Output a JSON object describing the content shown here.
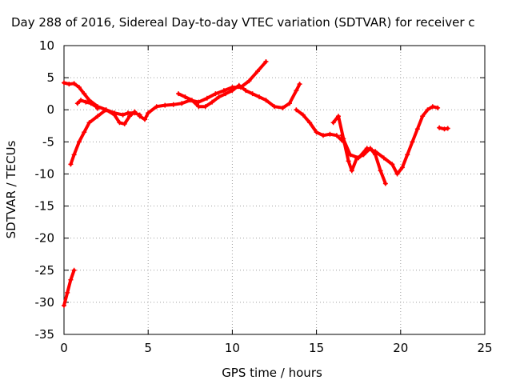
{
  "chart_data": {
    "type": "scatter",
    "title": "Day 288 of 2016, Sidereal Day-to-day VTEC variation (SDTVAR) for receiver c",
    "xlabel": "GPS time / hours",
    "ylabel": "SDTVAR / TECUs",
    "xlim": [
      0,
      25
    ],
    "ylim": [
      -35,
      10
    ],
    "xticks": [
      "0",
      "5",
      "10",
      "15",
      "20",
      "25"
    ],
    "yticks": [
      "10",
      "5",
      "0",
      "-5",
      "-10",
      "-15",
      "-20",
      "-25",
      "-30",
      "-35"
    ],
    "grid": true,
    "color": "#ff0000",
    "series": [
      {
        "x": [
          0.0,
          0.2,
          0.4,
          0.6
        ],
        "y": [
          -30.5,
          -28.5,
          -26.5,
          -25.0
        ]
      },
      {
        "x": [
          0.4,
          0.6,
          0.9,
          1.2,
          1.5,
          2.0,
          2.5,
          3.0,
          3.5,
          3.8,
          4.2,
          4.5
        ],
        "y": [
          -8.5,
          -7.0,
          -5.0,
          -3.5,
          -2.0,
          -1.0,
          0.0,
          -0.5,
          -0.8,
          -0.5,
          -0.5,
          -0.8
        ]
      },
      {
        "x": [
          0.0,
          0.3,
          0.6,
          0.9,
          1.2,
          1.5,
          2.0,
          2.5,
          3.0,
          3.3,
          3.6,
          3.9,
          4.2
        ],
        "y": [
          4.2,
          4.0,
          4.1,
          3.5,
          2.5,
          1.5,
          0.5,
          0.0,
          -0.8,
          -2.0,
          -2.2,
          -1.0,
          -0.3
        ]
      },
      {
        "x": [
          0.8,
          1.0,
          1.3,
          1.6,
          1.9,
          2.0
        ],
        "y": [
          1.0,
          1.5,
          1.2,
          1.0,
          0.5,
          0.2
        ]
      },
      {
        "x": [
          4.5,
          4.8,
          5.0,
          5.5,
          6.0,
          6.5,
          7.0,
          7.5,
          8.0,
          8.5,
          9.0,
          9.5,
          10.0,
          10.5,
          11.0,
          11.5,
          12.0
        ],
        "y": [
          -1.0,
          -1.5,
          -0.5,
          0.5,
          0.7,
          0.8,
          1.0,
          1.5,
          1.2,
          1.8,
          2.5,
          3.0,
          3.5,
          3.5,
          4.5,
          6.0,
          7.5
        ]
      },
      {
        "x": [
          6.8,
          7.2,
          7.6,
          8.0,
          8.4,
          8.8,
          9.2,
          9.6,
          10.0,
          10.4,
          10.8,
          11.2,
          11.6,
          12.0,
          12.5,
          13.0,
          13.4,
          13.8,
          14.0
        ],
        "y": [
          2.5,
          2.0,
          1.5,
          0.5,
          0.5,
          1.2,
          2.0,
          2.5,
          3.0,
          3.8,
          3.0,
          2.5,
          2.0,
          1.5,
          0.5,
          0.3,
          1.0,
          3.0,
          4.0
        ]
      },
      {
        "x": [
          13.8,
          14.2,
          14.6,
          15.0,
          15.4,
          15.8,
          16.2,
          16.6
        ],
        "y": [
          0.0,
          -0.8,
          -2.0,
          -3.5,
          -4.0,
          -3.8,
          -4.0,
          -5.0
        ]
      },
      {
        "x": [
          16.0,
          16.3,
          16.6,
          16.9,
          17.1,
          17.4,
          17.8,
          18.2,
          18.5,
          18.8,
          19.1
        ],
        "y": [
          -2.0,
          -1.0,
          -4.5,
          -8.0,
          -9.5,
          -7.5,
          -7.0,
          -6.0,
          -7.0,
          -9.5,
          -11.5
        ]
      },
      {
        "x": [
          16.5,
          17.0,
          17.5,
          18.0,
          18.5,
          19.0,
          19.5,
          19.8,
          20.1,
          20.4,
          20.7,
          21.0,
          21.3,
          21.6,
          21.9,
          22.2
        ],
        "y": [
          -4.0,
          -7.0,
          -7.5,
          -6.0,
          -6.5,
          -7.5,
          -8.5,
          -10.0,
          -9.0,
          -7.0,
          -5.0,
          -3.0,
          -1.0,
          0.0,
          0.5,
          0.3
        ]
      },
      {
        "x": [
          22.3,
          22.6,
          22.8
        ],
        "y": [
          -2.8,
          -3.0,
          -2.9
        ]
      }
    ]
  }
}
